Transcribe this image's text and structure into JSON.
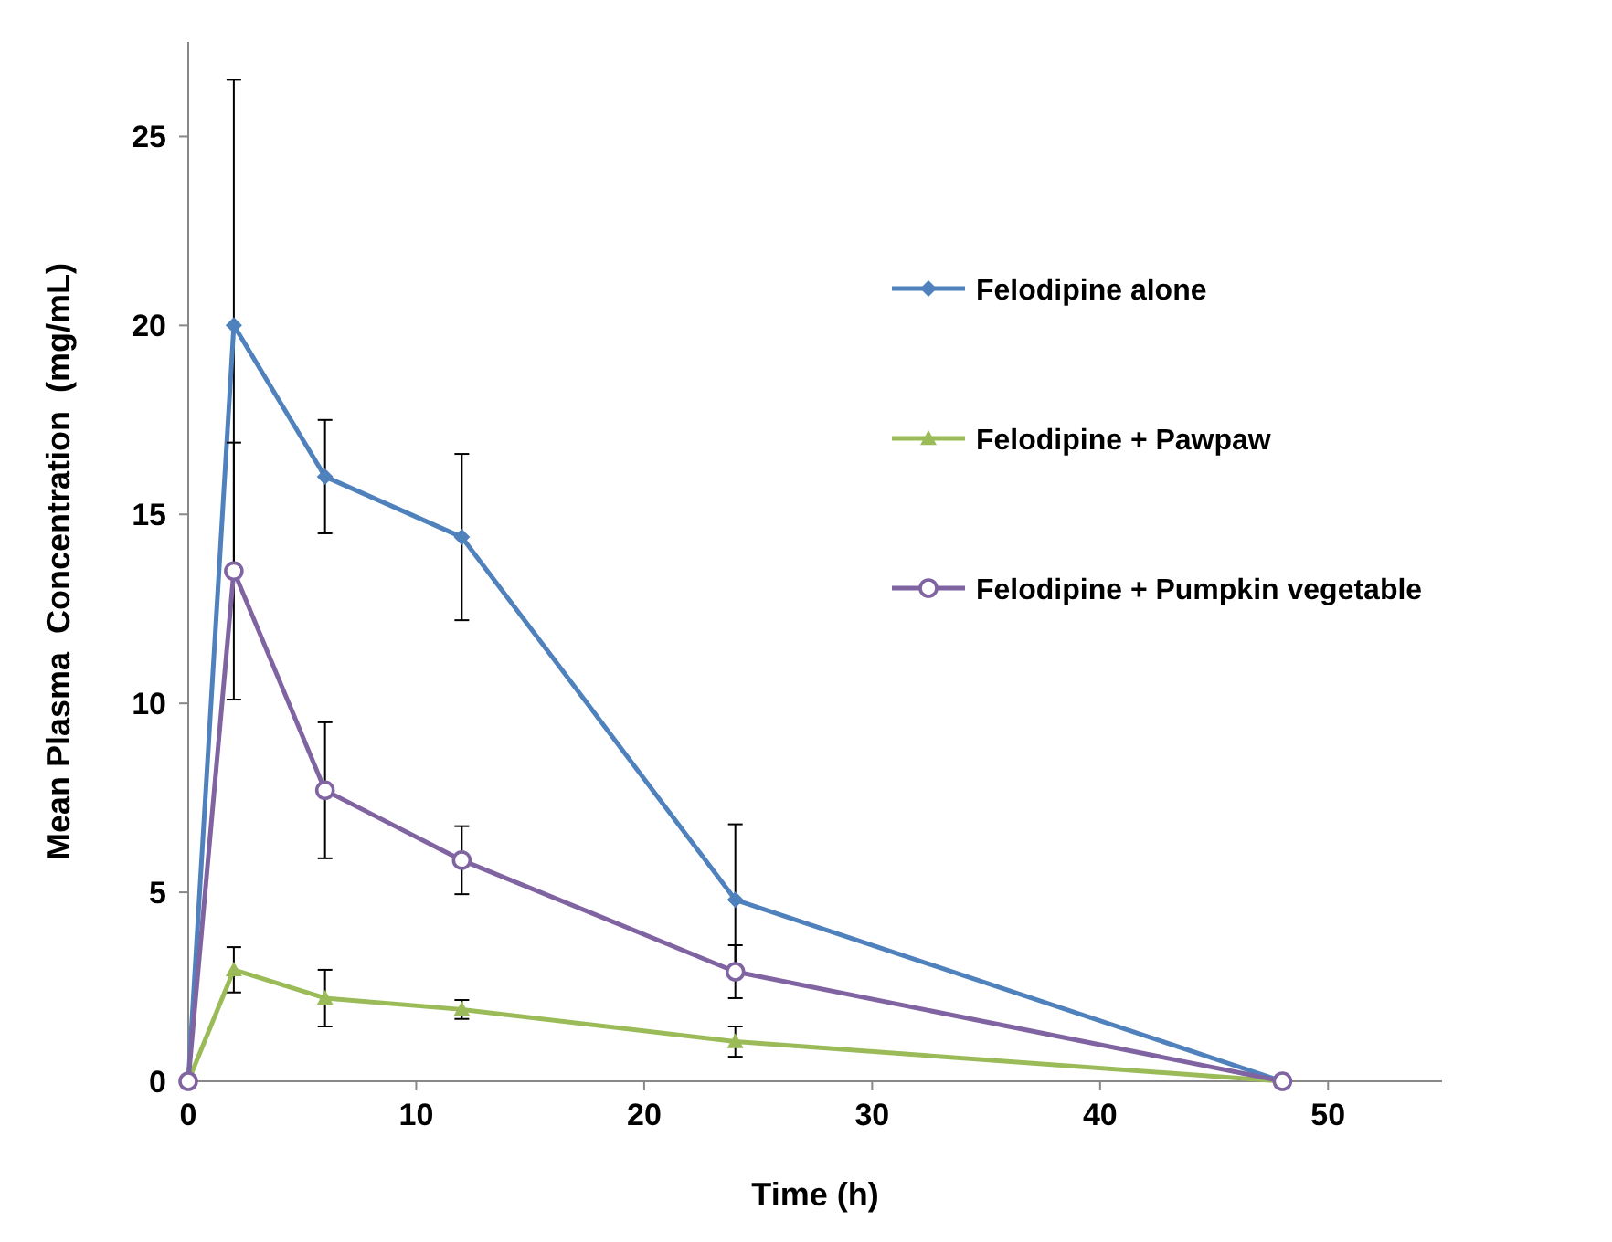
{
  "chart_data": {
    "type": "line",
    "xlabel": "Time (h)",
    "ylabel": "Mean Plasma  Concentration  (mg/mL)",
    "xlim": [
      0,
      55
    ],
    "ylim": [
      0,
      27.5
    ],
    "xticks": [
      0,
      10,
      20,
      30,
      40,
      50
    ],
    "yticks": [
      0,
      5,
      10,
      15,
      20,
      25
    ],
    "grid": false,
    "legend": "right",
    "x": [
      0,
      2,
      6,
      12,
      24,
      48
    ],
    "series": [
      {
        "name": "Felodipine alone",
        "color": "#4f81bd",
        "marker": "diamond",
        "values": [
          0,
          20.0,
          16.0,
          14.4,
          4.8,
          0
        ],
        "errors": [
          null,
          6.5,
          1.5,
          2.2,
          2.0,
          null
        ]
      },
      {
        "name": "Felodipine + Pawpaw",
        "color": "#9bbb59",
        "marker": "triangle",
        "values": [
          0,
          2.95,
          2.2,
          1.9,
          1.05,
          0
        ],
        "errors": [
          null,
          0.6,
          0.75,
          0.25,
          0.4,
          null
        ]
      },
      {
        "name": "Felodipine + Pumpkin vegetable",
        "color": "#8064a2",
        "marker": "circle",
        "values": [
          0,
          13.5,
          7.7,
          5.85,
          2.9,
          0
        ],
        "errors": [
          null,
          3.4,
          1.8,
          0.9,
          0.7,
          null
        ]
      }
    ]
  }
}
